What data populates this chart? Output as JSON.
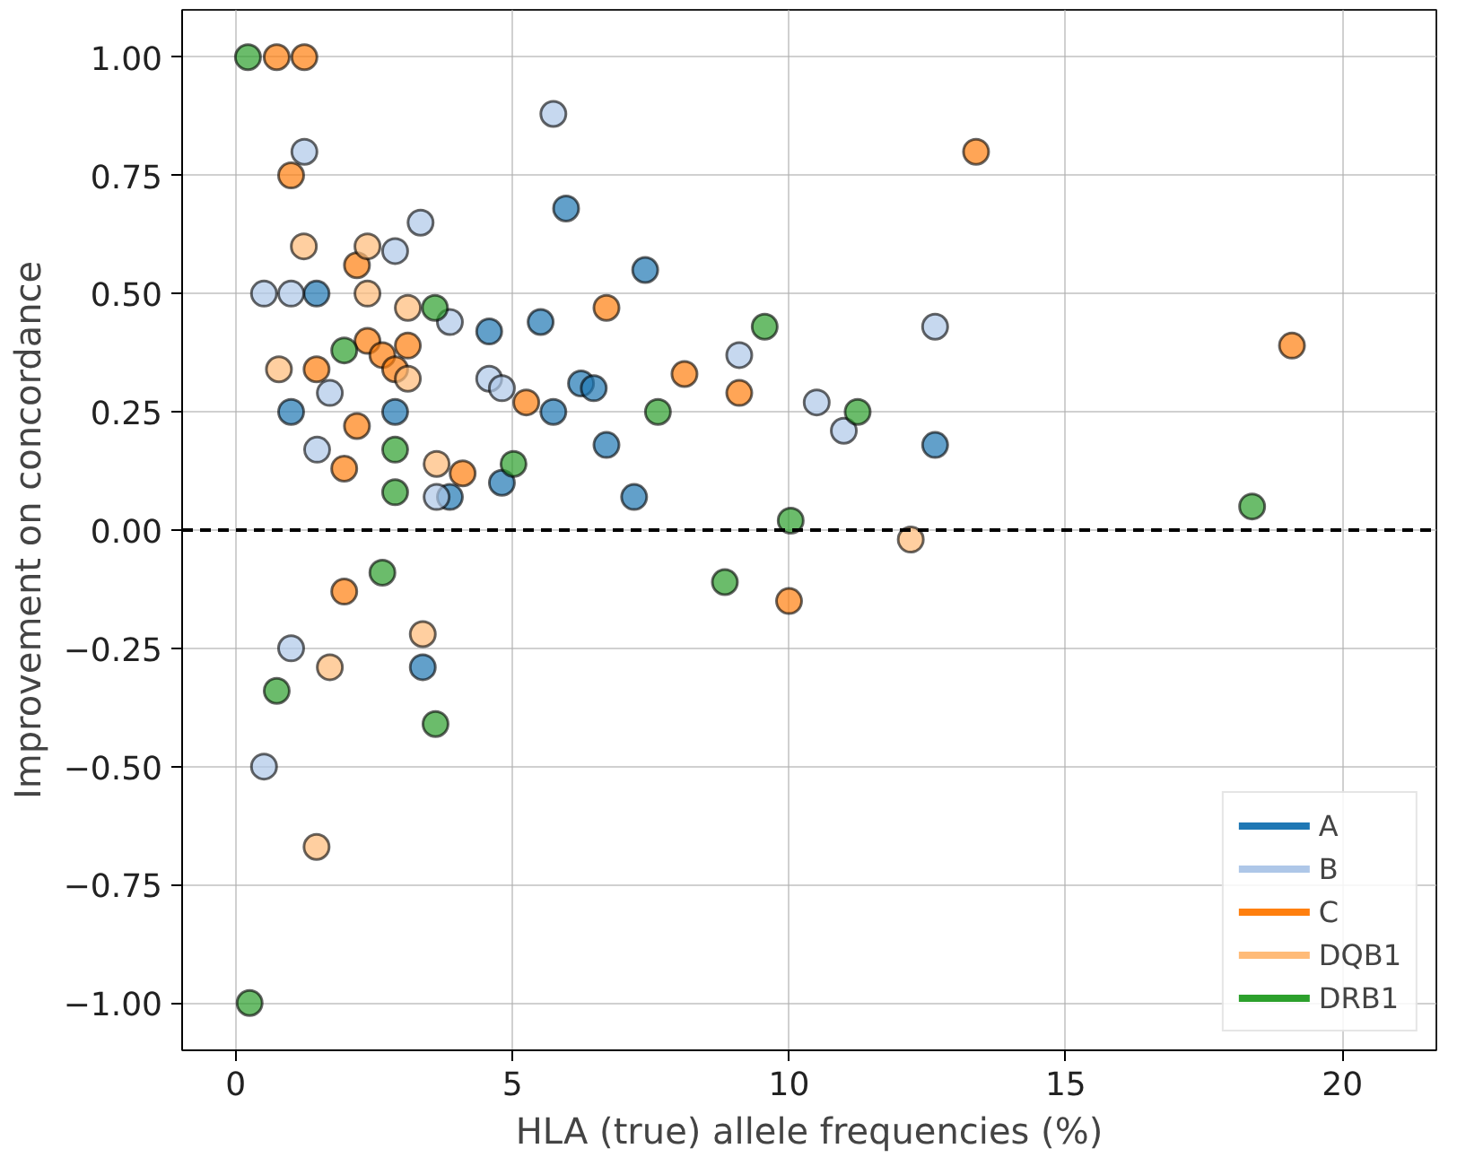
{
  "chart_data": {
    "type": "scatter",
    "xlabel": "HLA (true) allele frequencies (%)",
    "ylabel": "Improvement on concordance",
    "xlim": [
      -0.97,
      21.7
    ],
    "ylim": [
      -1.1,
      1.1
    ],
    "xticks": [
      0,
      5,
      10,
      15,
      20
    ],
    "yticks": [
      {
        "value": -1,
        "label": "−1.00"
      },
      {
        "value": -0.75,
        "label": "−0.75"
      },
      {
        "value": -0.5,
        "label": "−0.50"
      },
      {
        "value": -0.25,
        "label": "−0.25"
      },
      {
        "value": 0,
        "label": "0.00"
      },
      {
        "value": 0.25,
        "label": "0.25"
      },
      {
        "value": 0.5,
        "label": "0.50"
      },
      {
        "value": 0.75,
        "label": "0.75"
      },
      {
        "value": 1,
        "label": "1.00"
      }
    ],
    "grid": true,
    "legend": "bottom right",
    "marker": "circle",
    "ref_lines": [
      {
        "axis": "y",
        "value": 0,
        "color": "#000000",
        "line_style": "dashed"
      }
    ],
    "series": [
      {
        "name": "A",
        "color": "#1f77b4",
        "x": [
          1.46,
          5.97,
          7.4,
          4.58,
          5.51,
          1.0,
          2.88,
          6.24,
          6.47,
          5.74,
          6.7,
          4.81,
          7.2,
          3.87,
          12.64,
          3.38
        ],
        "values": [
          0.5,
          0.68,
          0.55,
          0.42,
          0.44,
          0.25,
          0.25,
          0.31,
          0.3,
          0.25,
          0.18,
          0.1,
          0.07,
          0.07,
          0.18,
          -0.29
        ]
      },
      {
        "name": "B",
        "color": "#aec7e8",
        "x": [
          1.24,
          5.74,
          3.34,
          2.88,
          0.51,
          1.0,
          3.87,
          4.58,
          4.81,
          1.7,
          1.47,
          3.63,
          9.1,
          12.64,
          10.5,
          10.99,
          1.0,
          0.51
        ],
        "values": [
          0.8,
          0.88,
          0.65,
          0.59,
          0.5,
          0.5,
          0.44,
          0.32,
          0.3,
          0.29,
          0.17,
          0.07,
          0.37,
          0.43,
          0.27,
          0.21,
          -0.25,
          -0.5
        ]
      },
      {
        "name": "C",
        "color": "#ff7f0e",
        "x": [
          0.74,
          1.24,
          1.0,
          2.19,
          6.7,
          2.38,
          2.65,
          3.11,
          1.46,
          2.88,
          5.25,
          8.11,
          9.1,
          2.19,
          1.96,
          4.1,
          13.38,
          19.09,
          1.96,
          10.0
        ],
        "values": [
          1.0,
          1.0,
          0.75,
          0.56,
          0.47,
          0.4,
          0.37,
          0.39,
          0.34,
          0.34,
          0.27,
          0.33,
          0.29,
          0.22,
          0.13,
          0.12,
          0.8,
          0.39,
          -0.13,
          -0.15
        ]
      },
      {
        "name": "DQB1",
        "color": "#ffbb78",
        "x": [
          1.23,
          2.38,
          2.38,
          3.11,
          3.11,
          3.63,
          0.78,
          12.2,
          3.38,
          1.7,
          1.46
        ],
        "values": [
          0.6,
          0.6,
          0.5,
          0.47,
          0.32,
          0.14,
          0.34,
          -0.02,
          -0.22,
          -0.29,
          -0.67
        ]
      },
      {
        "name": "DRB1",
        "color": "#2ca02c",
        "x": [
          0.22,
          3.6,
          1.96,
          9.56,
          7.63,
          2.88,
          5.02,
          2.88,
          11.24,
          10.03,
          18.37,
          2.65,
          8.84,
          0.74,
          3.61,
          0.25
        ],
        "values": [
          1.0,
          0.47,
          0.38,
          0.43,
          0.25,
          0.17,
          0.14,
          0.08,
          0.25,
          0.02,
          0.05,
          -0.09,
          -0.11,
          -0.34,
          -0.41,
          -1.0
        ]
      }
    ]
  }
}
